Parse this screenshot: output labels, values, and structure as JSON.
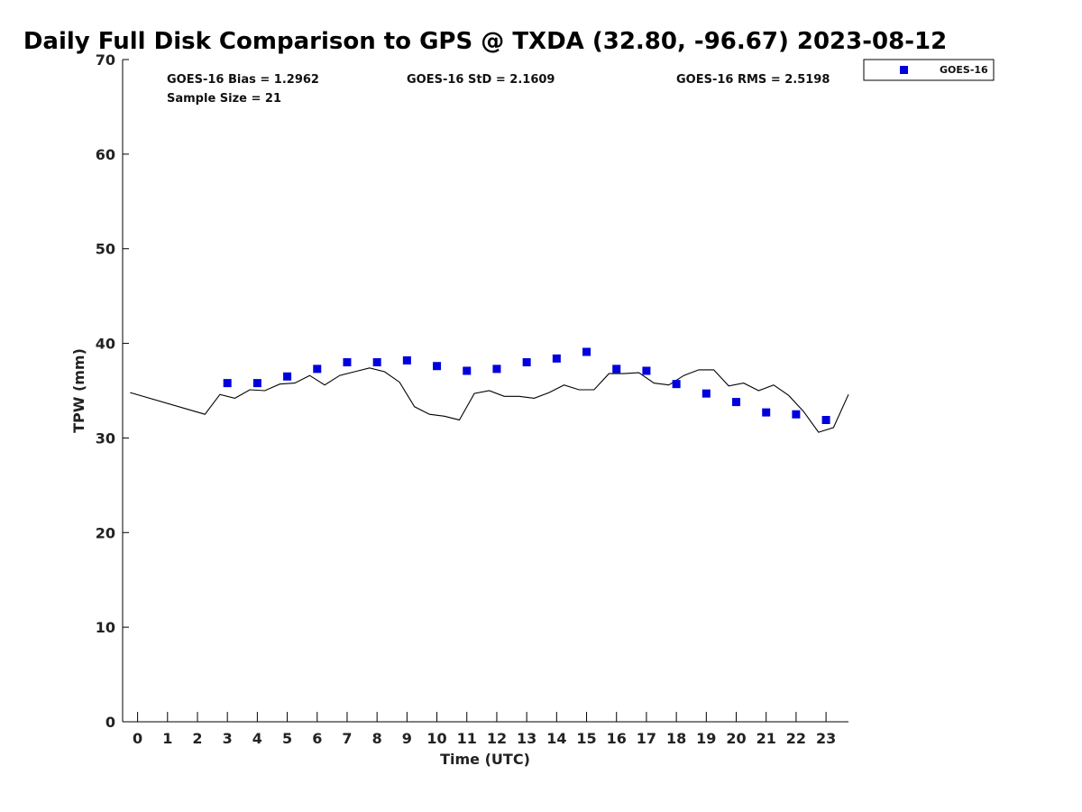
{
  "chart_data": {
    "type": "scatter",
    "title": "Daily Full Disk Comparison to GPS @ TXDA (32.80, -96.67) 2023-08-12",
    "xlabel": "Time (UTC)",
    "ylabel": "TPW (mm)",
    "xlim": [
      -0.5,
      23.75
    ],
    "ylim": [
      0,
      70
    ],
    "x_ticks": [
      0,
      1,
      2,
      3,
      4,
      5,
      6,
      7,
      8,
      9,
      10,
      11,
      12,
      13,
      14,
      15,
      16,
      17,
      18,
      19,
      20,
      21,
      22,
      23
    ],
    "y_ticks": [
      0,
      10,
      20,
      30,
      40,
      50,
      60,
      70
    ],
    "grid": false,
    "legend_position": "outside-top-right",
    "series": [
      {
        "name": "GOES-16",
        "kind": "scatter",
        "marker": "square",
        "color": "#0000dd",
        "x": [
          3,
          4,
          5,
          6,
          7,
          8,
          9,
          10,
          11,
          12,
          13,
          14,
          15,
          16,
          17,
          18,
          19,
          20,
          21,
          22,
          23
        ],
        "y": [
          35.8,
          35.8,
          36.5,
          37.3,
          38.0,
          38.0,
          38.2,
          37.6,
          37.1,
          37.3,
          38.0,
          38.4,
          39.1,
          37.3,
          37.1,
          35.7,
          34.7,
          33.8,
          32.7,
          32.5,
          31.9
        ]
      },
      {
        "kind": "line",
        "color": "#000000",
        "x": [
          -0.25,
          2.25,
          2.75,
          3.25,
          3.75,
          4.25,
          4.75,
          5.25,
          5.75,
          6.25,
          6.75,
          7.25,
          7.75,
          8.25,
          8.75,
          9.25,
          9.75,
          10.25,
          10.75,
          11.25,
          11.75,
          12.25,
          12.75,
          13.25,
          13.75,
          14.25,
          14.75,
          15.25,
          15.75,
          16.25,
          16.75,
          17.25,
          17.75,
          18.25,
          18.75,
          19.25,
          19.75,
          20.25,
          20.75,
          21.25,
          21.75,
          22.25,
          22.75,
          23.25,
          23.75
        ],
        "y": [
          34.8,
          32.5,
          34.6,
          34.2,
          35.1,
          35.0,
          35.7,
          35.8,
          36.6,
          35.6,
          36.6,
          37.0,
          37.4,
          37.0,
          35.9,
          33.3,
          32.5,
          32.3,
          31.9,
          34.7,
          35.0,
          34.4,
          34.4,
          34.2,
          34.8,
          35.6,
          35.1,
          35.1,
          36.8,
          36.8,
          36.9,
          35.8,
          35.6,
          36.6,
          37.2,
          37.2,
          35.5,
          35.8,
          35.0,
          35.6,
          34.5,
          32.8,
          30.6,
          31.1,
          34.6
        ]
      }
    ],
    "annotations": {
      "bias": "GOES-16 Bias = 1.2962",
      "std": "GOES-16 StD = 2.1609",
      "rms": "GOES-16 RMS = 2.5198",
      "sample_size": "Sample Size = 21"
    }
  }
}
